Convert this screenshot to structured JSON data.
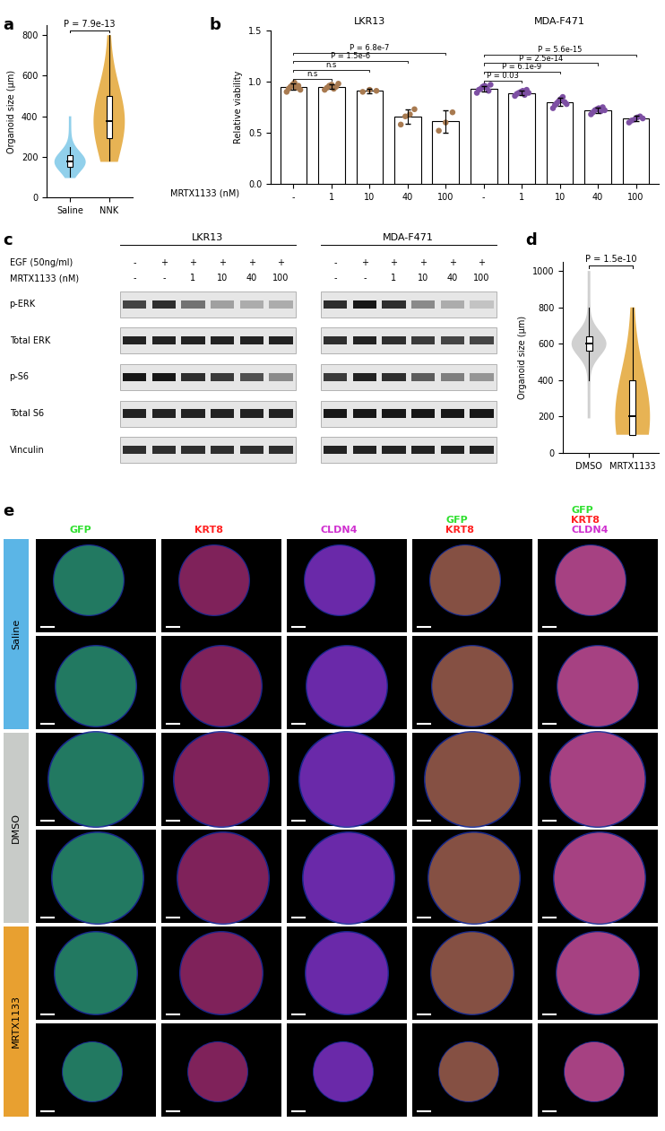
{
  "chart_data": [
    {
      "type": "violin",
      "label": "a",
      "ylabel": "Organoid size (μm)",
      "categories": [
        "Saline",
        "NNK"
      ],
      "colors": [
        "#7ec8e8",
        "#e3a636"
      ],
      "box": [
        {
          "min": 100,
          "q1": 150,
          "median": 175,
          "q3": 210,
          "max": 250
        },
        {
          "min": 180,
          "q1": 290,
          "median": 375,
          "q3": 500,
          "max": 800
        }
      ],
      "spread": [
        [
          95,
          400
        ],
        [
          175,
          800
        ]
      ],
      "ylim": [
        0,
        850
      ],
      "yticks": [
        0,
        200,
        400,
        600,
        800
      ],
      "comparisons": [
        {
          "pair": [
            0,
            1
          ],
          "label": "P = 7.9e-13"
        }
      ]
    },
    {
      "type": "bar",
      "label": "b",
      "ylabel": "Relative viability",
      "xlabel": "MRTX1133 (nM)",
      "categories": [
        "-",
        "1",
        "10",
        "40",
        "100",
        "-",
        "1",
        "10",
        "40",
        "100"
      ],
      "groups": [
        {
          "name": "LKR13",
          "size": 5
        },
        {
          "name": "MDA-F471",
          "size": 5
        }
      ],
      "values": [
        0.95,
        0.95,
        0.91,
        0.66,
        0.61,
        0.93,
        0.89,
        0.8,
        0.72,
        0.64
      ],
      "errors": [
        0.03,
        0.02,
        0.02,
        0.07,
        0.11,
        0.03,
        0.02,
        0.04,
        0.03,
        0.03
      ],
      "points": [
        [
          0.9,
          0.93,
          0.95,
          0.97,
          0.99,
          0.94,
          0.96,
          0.92
        ],
        [
          0.92,
          0.94,
          0.96,
          0.97,
          0.93,
          0.95,
          0.98
        ],
        [
          0.9,
          0.92,
          0.91
        ],
        [
          0.58,
          0.66,
          0.68,
          0.73
        ],
        [
          0.52,
          0.6,
          0.7
        ],
        [
          0.89,
          0.92,
          0.93,
          0.95,
          0.96,
          0.94,
          0.91,
          0.97
        ],
        [
          0.86,
          0.88,
          0.89,
          0.9,
          0.91,
          0.87,
          0.92,
          0.89
        ],
        [
          0.74,
          0.77,
          0.79,
          0.81,
          0.83,
          0.85,
          0.8,
          0.78
        ],
        [
          0.68,
          0.7,
          0.72,
          0.73,
          0.74,
          0.71,
          0.75,
          0.72
        ],
        [
          0.6,
          0.62,
          0.63,
          0.65,
          0.66,
          0.64
        ]
      ],
      "colors": [
        "#a87a50",
        "#a87a50",
        "#a87a50",
        "#a87a50",
        "#a87a50",
        "#7d4fa3",
        "#7d4fa3",
        "#7d4fa3",
        "#7d4fa3",
        "#7d4fa3"
      ],
      "ylim": [
        0,
        1.5
      ],
      "yticks": [
        {
          "value": 0,
          "label": "0.0"
        },
        {
          "value": 0.5,
          "label": "0.5"
        },
        {
          "value": 1.0,
          "label": "1.0"
        },
        {
          "value": 1.5,
          "label": "1.5"
        }
      ],
      "comparisons": [
        {
          "pair": [
            0,
            1
          ],
          "label": "n.s"
        },
        {
          "pair": [
            0,
            2
          ],
          "label": "n.s"
        },
        {
          "pair": [
            0,
            3
          ],
          "label": "P = 1.5e-6"
        },
        {
          "pair": [
            0,
            4
          ],
          "label": "P = 6.8e-7"
        },
        {
          "pair": [
            5,
            6
          ],
          "label": "P = 0.03"
        },
        {
          "pair": [
            5,
            7
          ],
          "label": "P = 6.1e-9"
        },
        {
          "pair": [
            5,
            8
          ],
          "label": "P = 2.5e-14"
        },
        {
          "pair": [
            5,
            9
          ],
          "label": "P = 5.6e-15"
        }
      ]
    },
    {
      "type": "violin",
      "label": "d",
      "ylabel": "Organoid size (μm)",
      "categories": [
        "DMSO",
        "MRTX1133"
      ],
      "colors": [
        "#c8c8c8",
        "#e3a636"
      ],
      "box": [
        {
          "min": 400,
          "q1": 560,
          "median": 600,
          "q3": 640,
          "max": 800
        },
        {
          "min": 100,
          "q1": 100,
          "median": 200,
          "q3": 400,
          "max": 800
        }
      ],
      "spread": [
        [
          190,
          1000
        ],
        [
          100,
          800
        ]
      ],
      "ylim": [
        0,
        1050
      ],
      "yticks": [
        0,
        200,
        400,
        600,
        800,
        1000
      ],
      "comparisons": [
        {
          "pair": [
            0,
            1
          ],
          "label": "P = 1.5e-10"
        }
      ]
    }
  ],
  "blot": {
    "label": "c",
    "rows": [
      "p-ERK",
      "Total ERK",
      "p-S6",
      "Total S6",
      "Vinculin"
    ],
    "groups": [
      {
        "name": "LKR13",
        "treatments": [
          {
            "name": "EGF (50ng/ml)",
            "lanes": [
              "-",
              "+",
              "+",
              "+",
              "+",
              "+"
            ]
          },
          {
            "name": "MRTX1133 (nM)",
            "lanes": [
              "-",
              "-",
              "1",
              "10",
              "40",
              "100"
            ]
          }
        ],
        "bands": [
          [
            0.7,
            0.8,
            0.5,
            0.3,
            0.25,
            0.25
          ],
          [
            0.85,
            0.85,
            0.85,
            0.85,
            0.85,
            0.85
          ],
          [
            0.9,
            0.9,
            0.8,
            0.75,
            0.65,
            0.4
          ],
          [
            0.85,
            0.85,
            0.85,
            0.85,
            0.85,
            0.85
          ],
          [
            0.8,
            0.8,
            0.8,
            0.8,
            0.8,
            0.8
          ]
        ]
      },
      {
        "name": "MDA-F471",
        "treatments": [
          {
            "name": "EGF (50ng/ml)",
            "lanes": [
              "-",
              "+",
              "+",
              "+",
              "+",
              "+"
            ]
          },
          {
            "name": "MRTX1133 (nM)",
            "lanes": [
              "-",
              "-",
              "1",
              "10",
              "40",
              "100"
            ]
          }
        ],
        "bands": [
          [
            0.8,
            0.9,
            0.8,
            0.4,
            0.25,
            0.15
          ],
          [
            0.8,
            0.85,
            0.8,
            0.75,
            0.7,
            0.7
          ],
          [
            0.75,
            0.85,
            0.8,
            0.6,
            0.45,
            0.35
          ],
          [
            0.9,
            0.9,
            0.9,
            0.9,
            0.9,
            0.9
          ],
          [
            0.85,
            0.85,
            0.85,
            0.85,
            0.85,
            0.85
          ]
        ]
      }
    ]
  },
  "images": {
    "label": "e",
    "channels": [
      {
        "name": "GFP",
        "color": "#30e030"
      },
      {
        "name": "KRT8",
        "color": "#ff2020"
      },
      {
        "name": "CLDN4",
        "color": "#d030d0"
      }
    ],
    "columns": [
      [
        "GFP"
      ],
      [
        "KRT8"
      ],
      [
        "CLDN4"
      ],
      [
        "GFP",
        "KRT8"
      ],
      [
        "GFP",
        "KRT8",
        "CLDN4"
      ]
    ],
    "conditions": [
      {
        "name": "Saline",
        "color": "#5bb5e6",
        "images": 2
      },
      {
        "name": "DMSO",
        "color": "#c8cbc8",
        "images": 2
      },
      {
        "name": "MRTX1133",
        "color": "#e8a030",
        "images": 2
      }
    ]
  }
}
